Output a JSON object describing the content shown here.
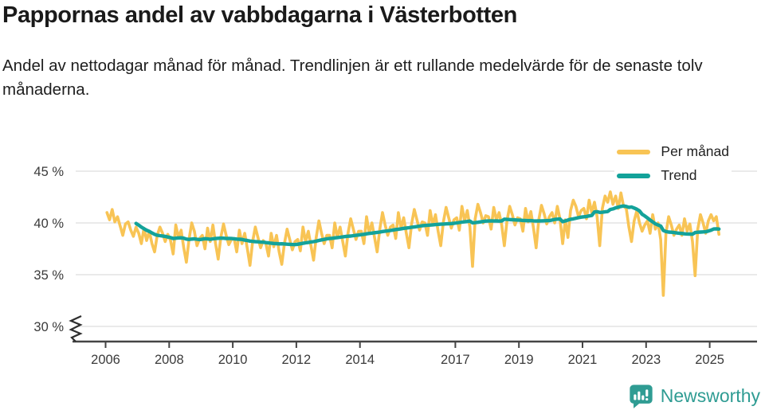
{
  "header": {
    "title": "Pappornas andel av vabbdagarna i Västerbotten",
    "subtitle": "Andel av nettodagar månad för månad. Trendlinjen är ett rullande medelvärde för de senaste tolv månaderna."
  },
  "legend": {
    "items": [
      {
        "label": "Per månad",
        "color": "#F8C455",
        "icon": "line-swatch-yellow"
      },
      {
        "label": "Trend",
        "color": "#13A29A",
        "icon": "line-swatch-teal"
      }
    ]
  },
  "footer": {
    "brand": "Newsworthy",
    "brand_color": "#2F9C93",
    "icon": "newsworthy-chart-bubble-icon"
  },
  "chart_data": {
    "type": "line",
    "title": "Pappornas andel av vabbdagarna i Västerbotten",
    "xlabel": "",
    "ylabel": "%",
    "unit": "%",
    "axis_break_at_bottom": true,
    "ylim_display": [
      30,
      45
    ],
    "grid": "horizontal",
    "legend_position": "top-right",
    "y_ticks": [
      {
        "label": "45 %",
        "value": 45
      },
      {
        "label": "40 %",
        "value": 40
      },
      {
        "label": "35 %",
        "value": 35
      },
      {
        "label": "30 %",
        "value": 30
      }
    ],
    "x_ticks": [
      {
        "label": "2006",
        "year": 2006
      },
      {
        "label": "2008",
        "year": 2008
      },
      {
        "label": "2010",
        "year": 2010
      },
      {
        "label": "2012",
        "year": 2012
      },
      {
        "label": "2014",
        "year": 2014
      },
      {
        "label": "2017",
        "year": 2017
      },
      {
        "label": "2019",
        "year": 2019
      },
      {
        "label": "2021",
        "year": 2021
      },
      {
        "label": "2023",
        "year": 2023
      },
      {
        "label": "2025",
        "year": 2025
      }
    ],
    "x_start": "2006-01",
    "x_end": "2025-04",
    "series": [
      {
        "name": "Per månad",
        "color": "#F8C455",
        "monthly_values": [
          41.0,
          40.3,
          41.3,
          40.1,
          40.6,
          39.7,
          38.8,
          39.9,
          40.1,
          39.3,
          38.7,
          39.6,
          39.0,
          38.0,
          39.5,
          38.3,
          39.2,
          38.0,
          37.2,
          38.8,
          39.6,
          39.0,
          38.2,
          38.9,
          38.3,
          37.0,
          39.8,
          38.6,
          39.3,
          37.6,
          36.2,
          38.4,
          40.0,
          39.2,
          37.8,
          38.5,
          38.8,
          37.5,
          39.5,
          38.2,
          39.8,
          38.0,
          36.5,
          38.6,
          39.9,
          38.8,
          37.9,
          38.4,
          38.5,
          37.2,
          39.3,
          38.0,
          39.0,
          37.5,
          35.9,
          38.2,
          39.6,
          38.6,
          37.6,
          38.3,
          38.0,
          36.8,
          39.0,
          37.7,
          38.8,
          37.2,
          36.0,
          38.0,
          39.4,
          38.4,
          37.4,
          38.2,
          38.4,
          37.3,
          39.6,
          38.2,
          39.2,
          37.8,
          36.4,
          38.6,
          40.2,
          39.0,
          38.0,
          38.8,
          38.8,
          37.6,
          40.0,
          38.6,
          39.6,
          38.2,
          36.8,
          39.0,
          40.4,
          39.4,
          38.4,
          39.2,
          39.2,
          38.0,
          40.6,
          39.0,
          40.0,
          38.6,
          37.2,
          39.4,
          41.0,
          39.8,
          38.8,
          39.6,
          39.8,
          38.5,
          41.0,
          39.5,
          40.5,
          39.0,
          37.6,
          39.9,
          41.3,
          40.3,
          39.3,
          40.1,
          40.0,
          38.8,
          41.2,
          39.8,
          40.8,
          39.2,
          37.8,
          40.1,
          41.5,
          40.5,
          39.5,
          40.3,
          40.5,
          39.3,
          41.6,
          40.2,
          41.2,
          39.6,
          35.8,
          40.4,
          41.8,
          41.0,
          40.0,
          40.7,
          40.6,
          39.4,
          41.5,
          40.3,
          41.0,
          39.8,
          37.8,
          40.2,
          41.6,
          40.8,
          39.8,
          40.5,
          40.4,
          39.2,
          41.4,
          40.1,
          41.1,
          39.5,
          37.6,
          40.3,
          41.7,
          40.9,
          39.9,
          40.6,
          41.0,
          40.0,
          41.6,
          40.4,
          38.0,
          40.3,
          38.6,
          41.2,
          42.2,
          41.6,
          40.6,
          41.2,
          41.4,
          40.4,
          42.2,
          41.0,
          42.0,
          40.6,
          37.8,
          41.4,
          42.6,
          42.0,
          43.0,
          41.8,
          42.6,
          41.4,
          42.9,
          41.6,
          41.4,
          39.6,
          38.2,
          40.2,
          41.2,
          40.0,
          39.2,
          39.8,
          40.2,
          39.0,
          40.8,
          39.4,
          40.0,
          38.4,
          33.0,
          39.0,
          40.6,
          39.8,
          38.8,
          39.4,
          39.8,
          38.8,
          40.4,
          39.2,
          39.9,
          38.2,
          34.9,
          39.4,
          40.8,
          40.0,
          39.0,
          40.2,
          40.8,
          40.2,
          40.6,
          38.9
        ]
      },
      {
        "name": "Trend",
        "color": "#13A29A",
        "derived_from": "12-month rolling mean of Per månad"
      }
    ]
  }
}
